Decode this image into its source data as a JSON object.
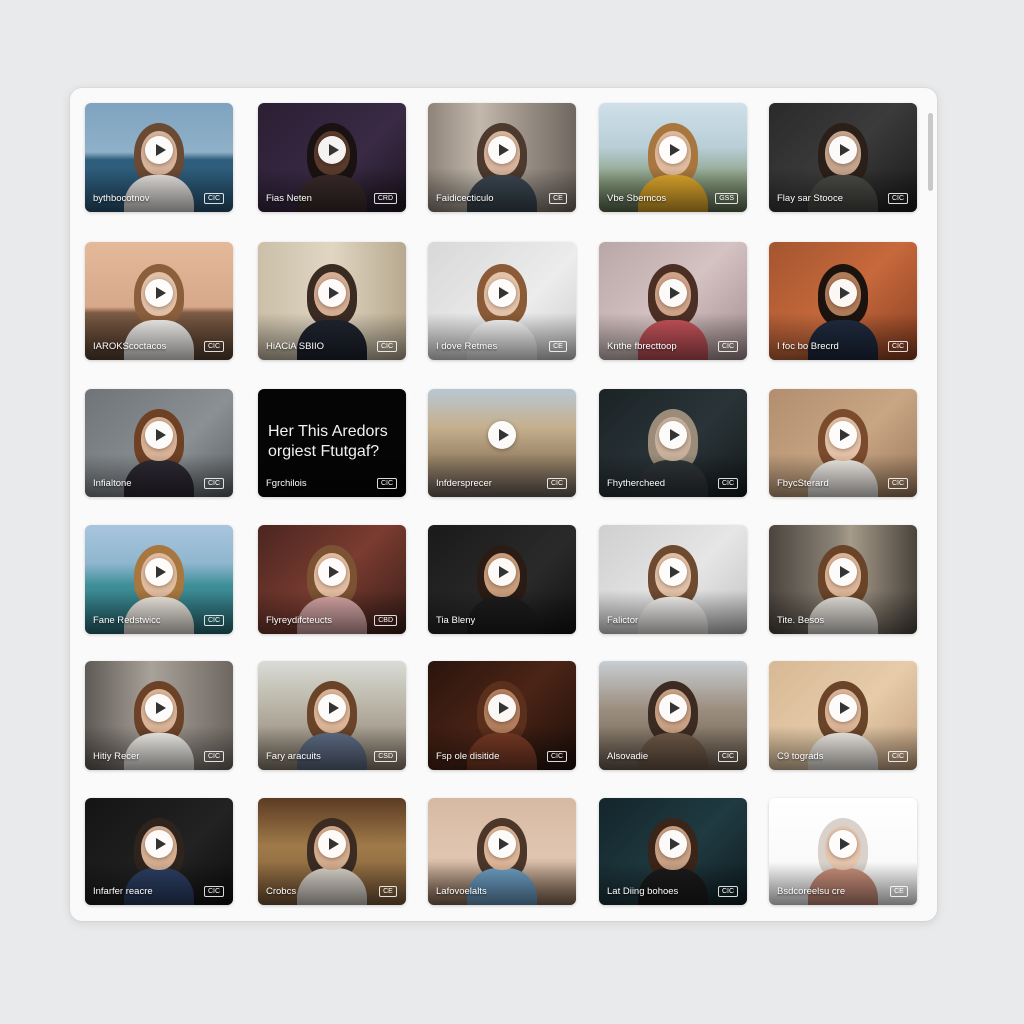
{
  "tiles": [
    {
      "caption": "bythbocotnov",
      "badge": "CIC",
      "bg": "linear-gradient(to bottom, #7fa3c0 0%, #8fb0c8 45%, #2f5f7d 52%, #2a5676 100%)",
      "hair": "#6b4a34",
      "skin": "#d7b39a",
      "body": "#e7e4e1"
    },
    {
      "caption": "Fias Neten",
      "badge": "CRD",
      "bg": "linear-gradient(135deg, #2b1f33 0%, #3a2a45 60%, #1c1520 100%)",
      "hair": "#1a1212",
      "skin": "#5a3b2c",
      "body": "#3a2a2a"
    },
    {
      "caption": "Faidicecticulo",
      "badge": "CE",
      "bg": "linear-gradient(90deg, #8d8378 0%, #c2b8ac 35%, #9a9086 65%, #6f6760 100%)",
      "hair": "#4b3a2d",
      "skin": "#d8b49b",
      "body": "#3b4752"
    },
    {
      "caption": "Vbe Sbemcos",
      "badge": "GSS",
      "bg": "linear-gradient(to bottom, #cfe0ea 0%, #b8cfd8 40%, #8ca083 70%, #5e6f52 100%)",
      "hair": "#a8763f",
      "skin": "#e0bb9e",
      "body": "#e0a82b"
    },
    {
      "caption": "Flay sar Stooce",
      "badge": "CIC",
      "bg": "linear-gradient(135deg, #2a2a2a 0%, #3b3b3b 50%, #1a1a1a 100%)",
      "hair": "#2b2019",
      "skin": "#c7a48c",
      "body": "#4a4a46"
    },
    {
      "caption": "IAROKScoctacos",
      "badge": "CIC",
      "bg": "linear-gradient(to bottom, #e4b99a 0%, #d7a88a 55%, #7c5b44 60%, #5a4332 100%)",
      "hair": "#8b5e3c",
      "skin": "#e2c0a6",
      "body": "#f3f1ee"
    },
    {
      "caption": "HiACiA SBIIO",
      "badge": "CIC",
      "bg": "linear-gradient(90deg, #cbbfa8 0%, #e0d6c2 50%, #b7a98f 100%)",
      "hair": "#3a2b22",
      "skin": "#d4ad92",
      "body": "#1f2430"
    },
    {
      "caption": "I dove Retmes",
      "badge": "CE",
      "bg": "linear-gradient(135deg, #d8d8d8 0%, #ececec 60%, #cfcfcf 100%)",
      "hair": "#8a5b36",
      "skin": "#e4c3a9",
      "body": "#f6f6f6"
    },
    {
      "caption": "Knthe fbrecttoop",
      "badge": "CIC",
      "bg": "linear-gradient(135deg, #b9a6a7 0%, #d5c2c2 50%, #a38e90 100%)",
      "hair": "#4b2f24",
      "skin": "#cfa388",
      "body": "#c5535a"
    },
    {
      "caption": "I foc bo Brecrd",
      "badge": "CIC",
      "bg": "linear-gradient(135deg, #a4552f 0%, #c7693c 50%, #8a3f22 100%)",
      "hair": "#1c130f",
      "skin": "#b07b58",
      "body": "#1f2b3f"
    },
    {
      "caption": "Infialtone",
      "badge": "CIC",
      "bg": "linear-gradient(135deg, #6f7478 0%, #8b9094 60%, #5b6064 100%)",
      "hair": "#6e4124",
      "skin": "#d9b296",
      "body": "#2d2a33"
    },
    {
      "caption": "Fgrchilois",
      "badge": "CIC",
      "bg": "#050505",
      "hair": "#050505",
      "skin": "#050505",
      "body": "#050505",
      "overlay": "Her This Aredors orgiest Ftutgaf?"
    },
    {
      "caption": "Infdersprecer",
      "badge": "CIC",
      "bg": "linear-gradient(to bottom, #b8c7d3 0%, #c5b08e 35%, #9a8467 65%, #6c625b 100%)",
      "hair": "#6c625b",
      "skin": "#6c625b",
      "body": "#6c625b",
      "noperson": true
    },
    {
      "caption": "Fhythercheed",
      "badge": "CIC",
      "bg": "linear-gradient(135deg, #1b2326 0%, #2a3438 55%, #141a1c 100%)",
      "hair": "#9b8c7a",
      "skin": "#c9b19c",
      "body": "#2f3538"
    },
    {
      "caption": "FbycSterard",
      "badge": "CIC",
      "bg": "linear-gradient(135deg, #b28e6e 0%, #c8a684 55%, #9a785a 100%)",
      "hair": "#7a4b2c",
      "skin": "#e3c1a6",
      "body": "#f0ece8"
    },
    {
      "caption": "Fane Redstwicc",
      "badge": "CIC",
      "bg": "linear-gradient(to bottom, #a9c5dd 0%, #8fb6cf 35%, #3f8f98 55%, #2a6e78 100%)",
      "hair": "#a8763f",
      "skin": "#e0bb9e",
      "body": "#efe9e1"
    },
    {
      "caption": "Flyreydifcteucts",
      "badge": "CBD",
      "bg": "linear-gradient(135deg, #4a2520 0%, #7a3c30 50%, #3a1d19 100%)",
      "hair": "#7b5232",
      "skin": "#e2bca0",
      "body": "#d7a6a6"
    },
    {
      "caption": "Tia Bleny",
      "badge": "",
      "bg": "linear-gradient(135deg, #1a1a1a 0%, #2a2a2a 60%, #111 100%)",
      "hair": "#2a1c14",
      "skin": "#c99d7b",
      "body": "#1d1d1d"
    },
    {
      "caption": "Falictor",
      "badge": "",
      "bg": "linear-gradient(135deg, #cfcfcf 0%, #e6e6e6 55%, #c2c2c2 100%)",
      "hair": "#6e4a30",
      "skin": "#e1c0a6",
      "body": "#f4f2ef"
    },
    {
      "caption": "Tite. Besos",
      "badge": "",
      "bg": "linear-gradient(90deg, #4b443e 0%, #8b8376 45%, #a69b8a 55%, #4a433c 100%)",
      "hair": "#6a4428",
      "skin": "#dcb597",
      "body": "#e7e3dd"
    },
    {
      "caption": "Hitiy Recer",
      "badge": "CIC",
      "bg": "linear-gradient(90deg, #5f5a55 0%, #a9a29a 45%, #6e6761 100%)",
      "hair": "#6b4228",
      "skin": "#dbb497",
      "body": "#f3f0ec"
    },
    {
      "caption": "Fary aracuits",
      "badge": "CSD",
      "bg": "linear-gradient(to bottom, #d9dcd6 0%, #b7b1a3 45%, #8a7f6f 100%)",
      "hair": "#6a4428",
      "skin": "#dcb597",
      "body": "#5e6d86"
    },
    {
      "caption": "Fsp ole disitide",
      "badge": "CIC",
      "bg": "linear-gradient(135deg, #2a140d 0%, #4b2416 50%, #1e0f0a 100%)",
      "hair": "#5a2f1c",
      "skin": "#b27e5e",
      "body": "#7a3a25"
    },
    {
      "caption": "Alsovadie",
      "badge": "CIC",
      "bg": "linear-gradient(to bottom, #c8ced3 0%, #9b8d7d 45%, #6b5d50 100%)",
      "hair": "#3b2b22",
      "skin": "#c9a184",
      "body": "#6f5a48"
    },
    {
      "caption": "C9 tograds",
      "badge": "CIC",
      "bg": "linear-gradient(135deg, #d7b894 0%, #e7ccaa 55%, #bf9e7c 100%)",
      "hair": "#6a4428",
      "skin": "#dcb597",
      "body": "#f1ede7"
    },
    {
      "caption": "Infarfer reacre",
      "badge": "CIC",
      "bg": "linear-gradient(135deg, #141414 0%, #222 60%, #0e0e0e 100%)",
      "hair": "#2e241d",
      "skin": "#d5ae91",
      "body": "#2b3f63"
    },
    {
      "caption": "Crobcs",
      "badge": "CE",
      "bg": "linear-gradient(to bottom, #5b3b23 0%, #a07a49 45%, #7a5a38 100%)",
      "hair": "#3b2b22",
      "skin": "#d3ab8d",
      "body": "#d8d2c9"
    },
    {
      "caption": "Lafovoelalts",
      "badge": "",
      "bg": "linear-gradient(to bottom, #d6b9a3 0%, #e0c6b1 55%, #8a6c57 100%)",
      "hair": "#4b3629",
      "skin": "#dcb597",
      "body": "#6c9ec4"
    },
    {
      "caption": "Lat Diing bohoes",
      "badge": "CIC",
      "bg": "linear-gradient(135deg, #13262b 0%, #1f3a41 55%, #0f1e22 100%)",
      "hair": "#3b2418",
      "skin": "#c8a084",
      "body": "#1b1b1b"
    },
    {
      "caption": "Bsdcoreelsu cre",
      "badge": "CE",
      "bg": "linear-gradient(to bottom, #ffffff 0%, #f6f6f6 100%)",
      "hair": "#d9d2cc",
      "skin": "#e6c5ad",
      "body": "#c98e7a"
    }
  ]
}
